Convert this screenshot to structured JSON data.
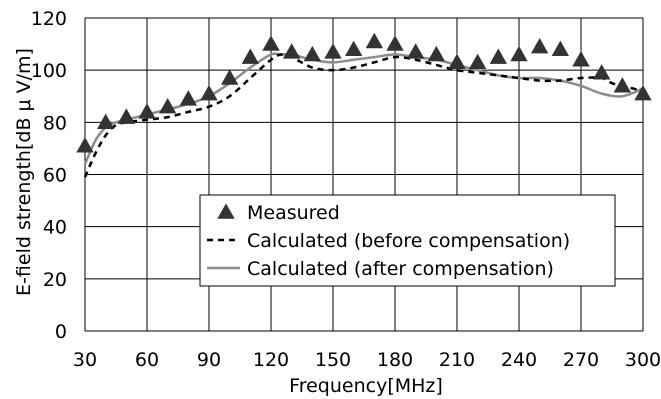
{
  "chart_data": {
    "type": "line",
    "xlabel": "Frequency[MHz]",
    "ylabel": "E-field strength[dB μ V/m]",
    "xlim": [
      30,
      300
    ],
    "ylim": [
      0,
      120
    ],
    "xticks": [
      30,
      60,
      90,
      120,
      150,
      180,
      210,
      240,
      270,
      300
    ],
    "yticks": [
      0,
      20,
      40,
      60,
      80,
      100,
      120
    ],
    "grid": true,
    "legend_position": "bottom-center",
    "series": [
      {
        "name": "Measured",
        "kind": "markers",
        "marker": "triangle",
        "color": "#333333",
        "x": [
          30,
          40,
          50,
          60,
          70,
          80,
          90,
          100,
          110,
          120,
          130,
          140,
          150,
          160,
          170,
          180,
          190,
          200,
          210,
          220,
          230,
          240,
          250,
          260,
          270,
          280,
          290,
          300
        ],
        "y": [
          71,
          80,
          82,
          84,
          86,
          89,
          91,
          97,
          105,
          110,
          107,
          106,
          107,
          108,
          111,
          110,
          107,
          106,
          103,
          103,
          105,
          106,
          109,
          108,
          104,
          99,
          94,
          91
        ]
      },
      {
        "name": "Calculated (before compensation)",
        "kind": "dashed",
        "color": "#000000",
        "x": [
          30,
          35,
          40,
          45,
          50,
          60,
          70,
          80,
          90,
          100,
          110,
          120,
          125,
          130,
          140,
          150,
          160,
          170,
          180,
          190,
          200,
          210,
          220,
          230,
          240,
          250,
          260,
          270,
          280,
          285,
          290,
          300
        ],
        "y": [
          59,
          68,
          75,
          79,
          80,
          81,
          82,
          84,
          86,
          90,
          97,
          104,
          106,
          105,
          101,
          100,
          101,
          103,
          105,
          104,
          102,
          100,
          99,
          98,
          97,
          96,
          96,
          97,
          97,
          95,
          94,
          92
        ]
      },
      {
        "name": "Calculated (after compensation)",
        "kind": "solid",
        "color": "#8c8c8c",
        "x": [
          30,
          35,
          40,
          45,
          50,
          60,
          70,
          80,
          90,
          100,
          110,
          120,
          125,
          130,
          140,
          150,
          160,
          170,
          180,
          190,
          200,
          210,
          220,
          230,
          240,
          250,
          260,
          270,
          280,
          290,
          300
        ],
        "y": [
          64,
          73,
          78,
          80,
          81,
          83,
          85,
          87,
          90,
          95,
          101,
          106,
          106,
          106,
          104,
          103,
          104,
          105,
          106,
          105,
          104,
          102,
          100,
          98,
          97,
          97,
          96,
          94,
          91,
          90,
          93
        ]
      }
    ]
  }
}
